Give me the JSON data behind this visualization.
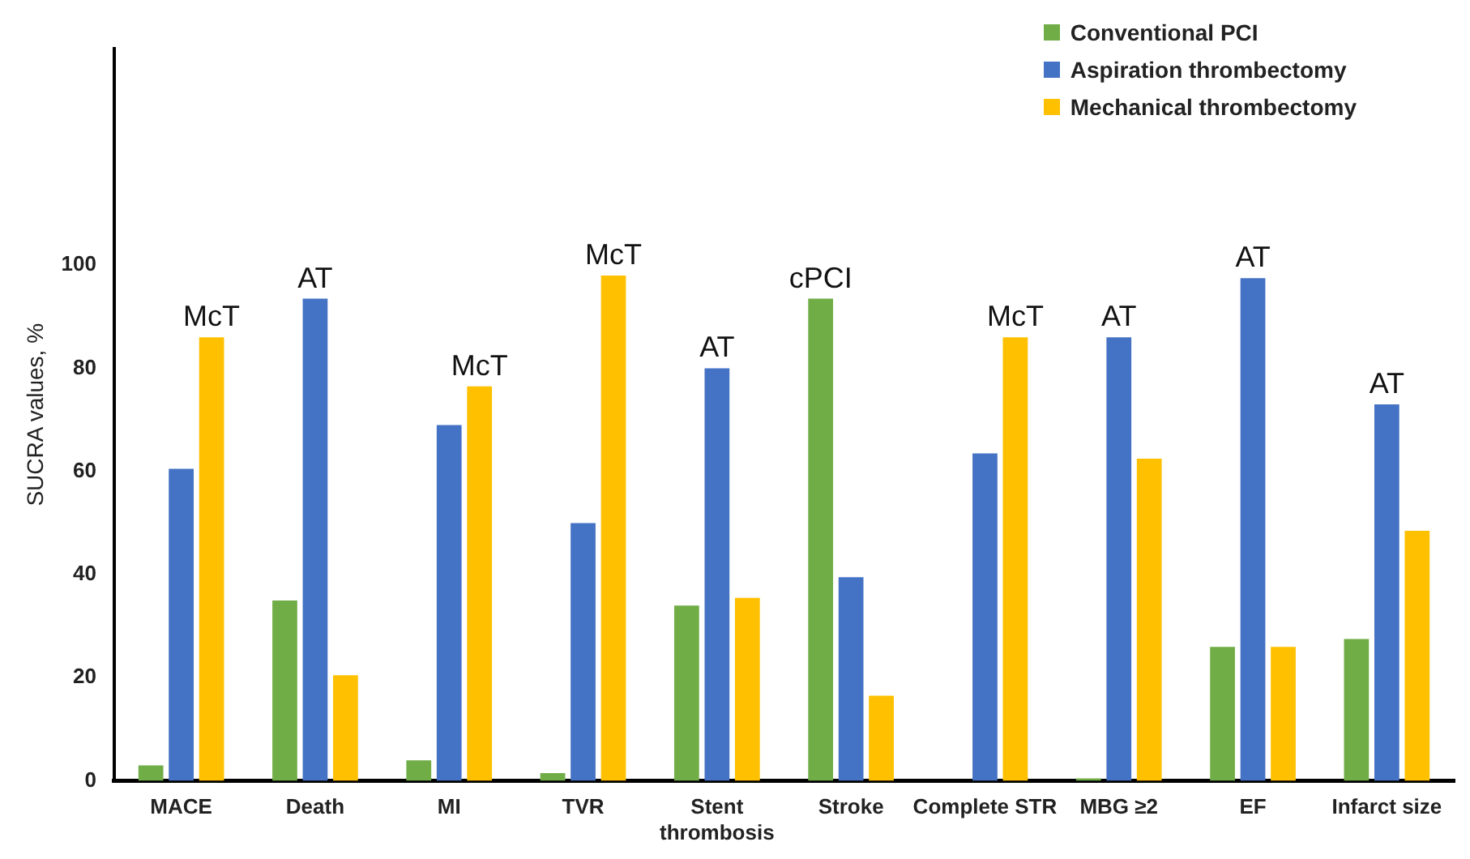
{
  "chart_data": {
    "type": "bar",
    "ylabel": "SUCRA values, %",
    "categories": [
      "MACE",
      "Death",
      "MI",
      "TVR",
      "Stent thrombosis",
      "Stroke",
      "Complete STR",
      "MBG ≥2",
      "EF",
      "Infarct size"
    ],
    "series": [
      {
        "name": "Conventional PCI",
        "color": "#70ad47",
        "values": [
          3,
          35,
          4,
          1.5,
          34,
          93.5,
          null,
          0.5,
          26,
          27.5
        ],
        "value_labels": [
          null,
          null,
          null,
          null,
          null,
          "cPCI",
          null,
          null,
          null,
          null
        ]
      },
      {
        "name": "Aspiration thrombectomy",
        "color": "#4472c4",
        "values": [
          60.5,
          93.5,
          69,
          50,
          80,
          39.5,
          63.5,
          86,
          97.5,
          73
        ],
        "value_labels": [
          null,
          "AT",
          null,
          null,
          "AT",
          null,
          null,
          "AT",
          "AT",
          "AT"
        ]
      },
      {
        "name": "Mechanical thrombectomy",
        "color": "#ffc000",
        "values": [
          86,
          20.5,
          76.5,
          98,
          35.5,
          16.5,
          86,
          62.5,
          26,
          48.5
        ],
        "value_labels": [
          "McT",
          null,
          "McT",
          "McT",
          null,
          null,
          "McT",
          null,
          null,
          null
        ]
      }
    ],
    "ylim": [
      0,
      142
    ],
    "yticks": [
      0,
      20,
      40,
      60,
      80,
      100
    ],
    "grid": false,
    "legend": "top right"
  }
}
